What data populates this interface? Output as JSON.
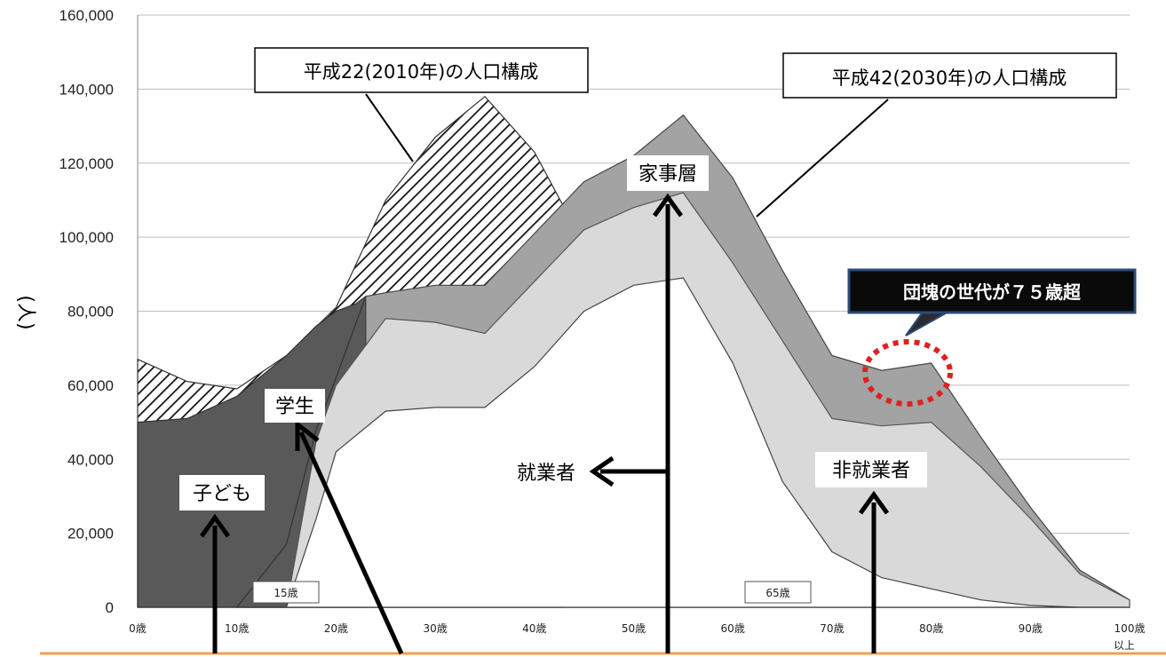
{
  "chart_data": {
    "type": "area",
    "ylabel": "(人)",
    "ylim": [
      0,
      160000
    ],
    "xlim": [
      0,
      100
    ],
    "yticks": [
      "0",
      "20,000",
      "40,000",
      "60,000",
      "80,000",
      "100,000",
      "120,000",
      "140,000",
      "160,000"
    ],
    "xticks": [
      "0歳",
      "10歳",
      "20歳",
      "30歳",
      "40歳",
      "50歳",
      "60歳",
      "70歳",
      "80歳",
      "90歳",
      "100歳"
    ],
    "xtick_last_suffix": "以上",
    "grid": true,
    "series": [
      {
        "name": "平成22(2010年)の人口構成",
        "x": [
          0,
          5,
          10,
          15,
          20,
          25,
          30,
          35,
          40,
          43
        ],
        "values": [
          67000,
          61000,
          59000,
          68000,
          81000,
          110000,
          127000,
          138000,
          123000,
          108000
        ]
      },
      {
        "name": "子ども",
        "x": [
          0,
          5,
          10,
          15,
          18,
          20,
          22,
          23
        ],
        "values": [
          50000,
          51000,
          57000,
          68000,
          76000,
          80000,
          82000,
          84000
        ]
      },
      {
        "name": "学生",
        "x": [
          10,
          15,
          18,
          20,
          23
        ],
        "values": [
          0,
          17000,
          48000,
          62000,
          84000
        ]
      },
      {
        "name": "平成42(2030年)の人口構成",
        "x": [
          23,
          25,
          30,
          35,
          40,
          45,
          50,
          55,
          60,
          65,
          70,
          75,
          80,
          85,
          90,
          95,
          100
        ],
        "values": [
          84000,
          85000,
          87000,
          87000,
          101000,
          115000,
          122000,
          133000,
          116000,
          91000,
          68000,
          64000,
          66000,
          46000,
          27000,
          10000,
          2000
        ]
      },
      {
        "name": "家事層",
        "x": [
          15,
          18,
          20,
          25,
          30,
          35,
          40,
          45,
          50,
          55,
          60,
          65,
          70,
          75,
          80,
          85,
          90,
          95,
          100
        ],
        "values": [
          0,
          45000,
          60000,
          78000,
          77000,
          74000,
          88000,
          102000,
          108000,
          112000,
          93000,
          72000,
          51000,
          49000,
          50000,
          38000,
          24000,
          9000,
          2000
        ]
      },
      {
        "name": "就業者",
        "x": [
          15,
          18,
          20,
          25,
          30,
          35,
          40,
          45,
          50,
          55,
          60,
          65,
          70,
          75,
          80,
          85,
          90,
          95,
          100
        ],
        "values": [
          0,
          24000,
          42000,
          53000,
          54000,
          54000,
          65000,
          80000,
          87000,
          89000,
          66000,
          34000,
          15000,
          8000,
          5000,
          2000,
          500,
          0,
          0
        ]
      }
    ],
    "annotations": {
      "box_2010": "平成22(2010年)の人口構成",
      "box_2030": "平成42(2030年)の人口構成",
      "kajisou": "家事層",
      "gakusei": "学生",
      "kodomo": "子ども",
      "shugyousha": "就業者",
      "hishugyousha": "非就業者",
      "dankai": "団塊の世代が７５歳超",
      "age15": "15歳",
      "age65": "65歳"
    }
  }
}
